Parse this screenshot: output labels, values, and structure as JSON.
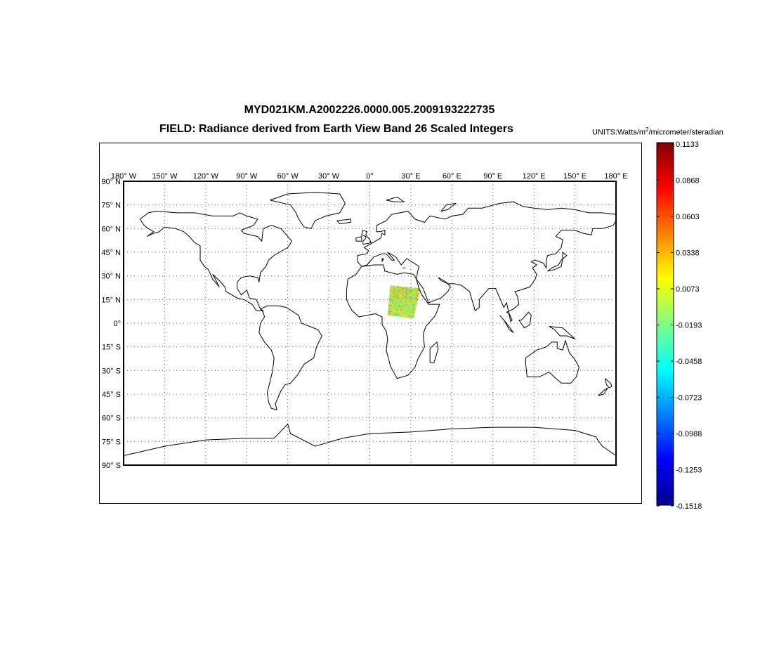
{
  "title": "MYD021KM.A2002226.0000.005.2009193222735",
  "subtitle": "FIELD: Radiance derived from Earth View Band 26 Scaled Integers",
  "units": {
    "prefix": "UNITS:Watts/m",
    "sup": "2",
    "suffix": "/micrometer/steradian"
  },
  "lon_ticks": [
    "180° W",
    "150° W",
    "120° W",
    "90° W",
    "60° W",
    "30° W",
    "0°",
    "30° E",
    "60° E",
    "90° E",
    "120° E",
    "150° E",
    "180° E"
  ],
  "lat_ticks": [
    "90° N",
    "75° N",
    "60° N",
    "45° N",
    "30° N",
    "15° N",
    "0°",
    "15° S",
    "30° S",
    "45° S",
    "60° S",
    "75° S",
    "90° S"
  ],
  "colorbar_ticks": [
    "0.1133",
    "0.0868",
    "0.0603",
    "0.0338",
    "0.0073",
    "-0.0193",
    "-0.0458",
    "-0.0723",
    "-0.0988",
    "-0.1253",
    "-0.1518"
  ],
  "colormap": [
    "#00008f",
    "#0000ff",
    "#0080ff",
    "#00ffff",
    "#80ff80",
    "#ffff00",
    "#ff8000",
    "#ff0000",
    "#800000"
  ],
  "grid": true,
  "chart_data": {
    "type": "heatmap",
    "title": "MYD021KM.A2002226.0000.005.2009193222735",
    "subtitle": "FIELD: Radiance derived from Earth View Band 26 Scaled Integers",
    "units": "Watts/m^2/micrometer/steradian",
    "projection": "equirectangular",
    "xlim": [
      -180,
      180
    ],
    "ylim": [
      -90,
      90
    ],
    "clim": [
      -0.1518,
      0.1133
    ],
    "swath_corners_lonlat": [
      [
        15,
        24
      ],
      [
        37,
        22
      ],
      [
        32,
        3
      ],
      [
        13,
        5
      ]
    ],
    "dominant_value": 0.0,
    "min_value": -0.1518,
    "max_value": 0.1133
  }
}
